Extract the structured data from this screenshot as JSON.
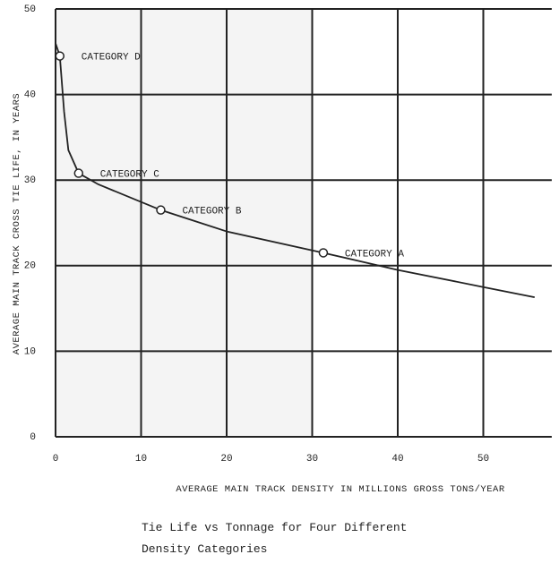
{
  "chart_data": {
    "type": "line",
    "caption": "Tie Life vs Tonnage for Four Different Density Categories",
    "xlabel": "AVERAGE MAIN TRACK DENSITY IN MILLIONS GROSS TONS/YEAR",
    "ylabel": "AVERAGE MAIN TRACK CROSS TIE LIFE, IN YEARS",
    "x": [
      0,
      0.5,
      1,
      1.5,
      2.7,
      5,
      12.3,
      20,
      31.3,
      40,
      50,
      56
    ],
    "values": [
      46,
      44.5,
      38,
      33.5,
      30.8,
      29.5,
      26.5,
      24,
      21.5,
      19.5,
      17.5,
      16.3
    ],
    "color": "#222222",
    "annotations": [
      {
        "text": "CATEGORY D",
        "x": 0.5,
        "y": 44.5
      },
      {
        "text": "CATEGORY C",
        "x": 2.7,
        "y": 30.8
      },
      {
        "text": "CATEGORY B",
        "x": 12.3,
        "y": 26.5
      },
      {
        "text": "CATEGORY A",
        "x": 31.3,
        "y": 21.5
      }
    ],
    "xlim": [
      0,
      58
    ],
    "ylim": [
      0,
      50
    ],
    "xticks": [
      0,
      10,
      20,
      30,
      40,
      50
    ],
    "yticks": [
      0,
      10,
      20,
      30,
      40,
      50
    ],
    "grid": true
  }
}
